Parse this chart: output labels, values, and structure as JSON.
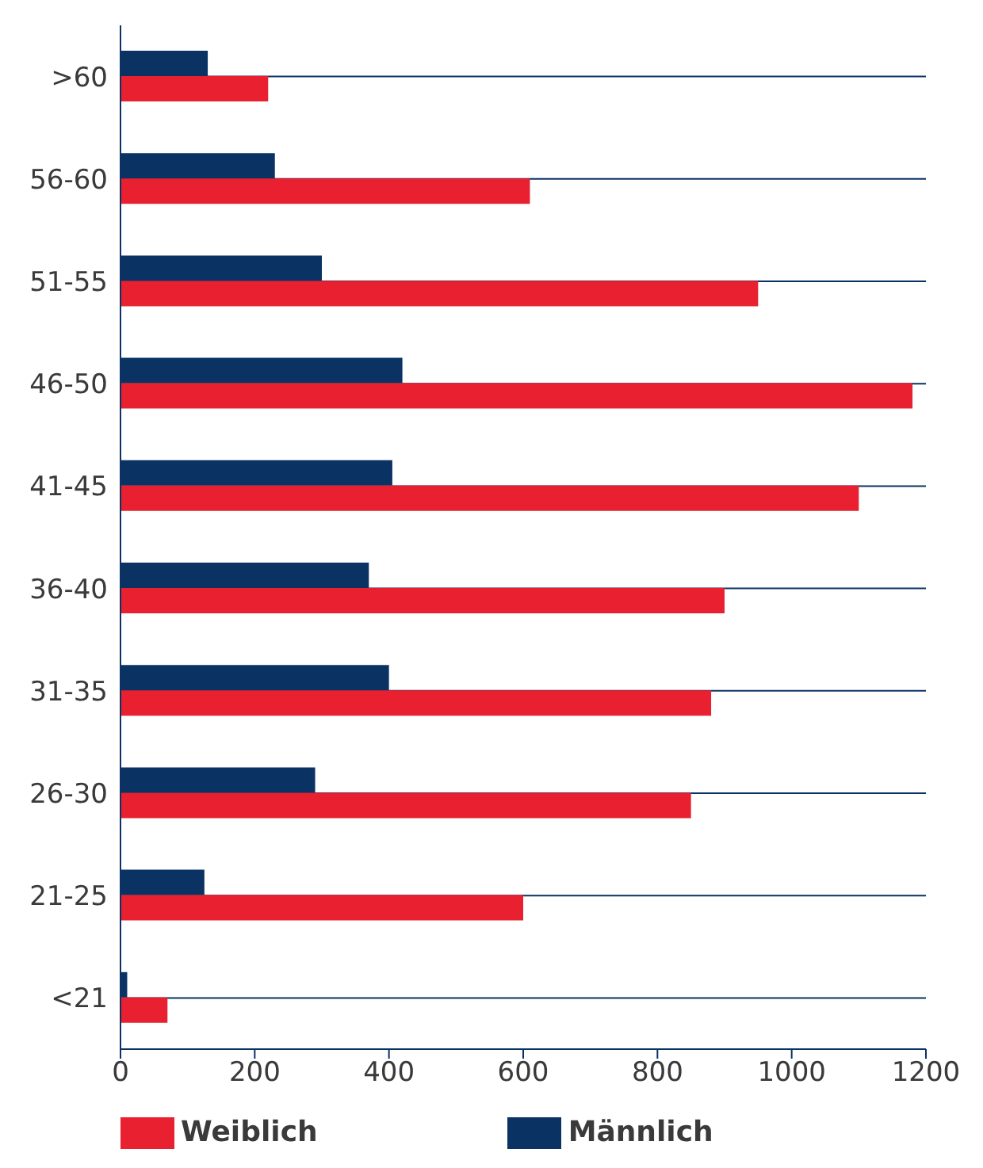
{
  "chart_data": {
    "type": "bar",
    "orientation": "horizontal",
    "categories": [
      ">60",
      "56-60",
      "51-55",
      "46-50",
      "41-45",
      "36-40",
      "31-35",
      "26-30",
      "21-25",
      "<21"
    ],
    "series": [
      {
        "name": "Weiblich",
        "color": "#e8202f",
        "values": [
          220,
          610,
          950,
          1180,
          1100,
          900,
          880,
          850,
          600,
          70
        ]
      },
      {
        "name": "Männlich",
        "color": "#0a3263",
        "values": [
          130,
          230,
          300,
          420,
          405,
          370,
          400,
          290,
          125,
          10
        ]
      }
    ],
    "xlim": [
      0,
      1200
    ],
    "xticks": [
      0,
      200,
      400,
      600,
      800,
      1000,
      1200
    ],
    "grid": "y",
    "legend": "bottom"
  }
}
